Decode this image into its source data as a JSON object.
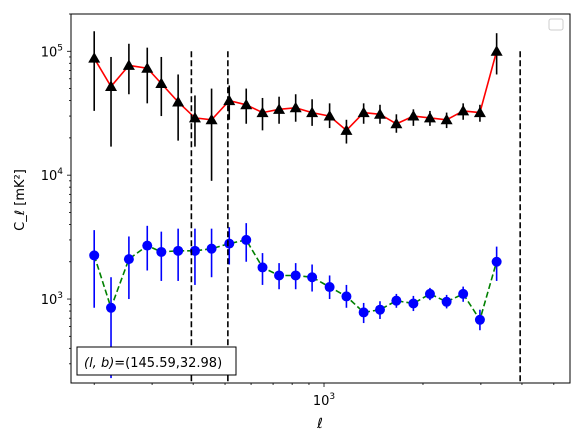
{
  "chart_data": {
    "type": "line",
    "title": "",
    "xlabel": "ℓ",
    "ylabel": "C_ℓ  [mK²]",
    "x_scale": "log",
    "y_scale": "log",
    "xlim": [
      170,
      5600
    ],
    "ylim": [
      210,
      200000
    ],
    "x_ticks": [
      {
        "value": 1000,
        "base": "10",
        "exp": "3"
      }
    ],
    "y_ticks": [
      {
        "value": 1000,
        "base": "10",
        "exp": "3"
      },
      {
        "value": 10000,
        "base": "10",
        "exp": "4"
      },
      {
        "value": 100000,
        "base": "10",
        "exp": "5"
      }
    ],
    "vlines": [
      395,
      510,
      3950
    ],
    "annotation": {
      "prefix": "(l, b)",
      "value": "=(145.59,32.98)"
    },
    "legend": {
      "placement": "top-right",
      "entries": []
    },
    "grid": false,
    "series": [
      {
        "color": "#ff0000",
        "linestyle": "solid",
        "marker": "triangle",
        "marker_color": "#000000",
        "errorbar_color": "#000000",
        "points": [
          {
            "x": 200,
            "y": 88000,
            "lo": 33000,
            "hi": 145000
          },
          {
            "x": 225,
            "y": 52000,
            "lo": 17000,
            "hi": 90000
          },
          {
            "x": 255,
            "y": 77000,
            "lo": 45000,
            "hi": 115000
          },
          {
            "x": 290,
            "y": 73000,
            "lo": 38000,
            "hi": 107000
          },
          {
            "x": 320,
            "y": 55000,
            "lo": 30000,
            "hi": 90000
          },
          {
            "x": 360,
            "y": 39000,
            "lo": 19000,
            "hi": 65000
          },
          {
            "x": 405,
            "y": 29000,
            "lo": 17000,
            "hi": 44000
          },
          {
            "x": 455,
            "y": 28000,
            "lo": 9000,
            "hi": 50000
          },
          {
            "x": 515,
            "y": 40000,
            "lo": 28000,
            "hi": 53000
          },
          {
            "x": 580,
            "y": 37000,
            "lo": 26000,
            "hi": 50000
          },
          {
            "x": 650,
            "y": 32000,
            "lo": 23000,
            "hi": 42000
          },
          {
            "x": 730,
            "y": 34000,
            "lo": 26000,
            "hi": 43000
          },
          {
            "x": 820,
            "y": 35000,
            "lo": 27000,
            "hi": 45000
          },
          {
            "x": 920,
            "y": 32000,
            "lo": 25000,
            "hi": 41000
          },
          {
            "x": 1040,
            "y": 30000,
            "lo": 24000,
            "hi": 38000
          },
          {
            "x": 1170,
            "y": 23000,
            "lo": 18000,
            "hi": 28000
          },
          {
            "x": 1320,
            "y": 32000,
            "lo": 26000,
            "hi": 38000
          },
          {
            "x": 1480,
            "y": 31000,
            "lo": 26000,
            "hi": 37000
          },
          {
            "x": 1660,
            "y": 26000,
            "lo": 22000,
            "hi": 31000
          },
          {
            "x": 1870,
            "y": 30000,
            "lo": 25000,
            "hi": 34000
          },
          {
            "x": 2100,
            "y": 29000,
            "lo": 25000,
            "hi": 33000
          },
          {
            "x": 2360,
            "y": 28000,
            "lo": 24000,
            "hi": 32000
          },
          {
            "x": 2650,
            "y": 33000,
            "lo": 28000,
            "hi": 38000
          },
          {
            "x": 2980,
            "y": 32000,
            "lo": 27000,
            "hi": 37000
          },
          {
            "x": 3350,
            "y": 100000,
            "lo": 65000,
            "hi": 140000
          }
        ]
      },
      {
        "color": "#008000",
        "linestyle": "dashed",
        "marker": "circle",
        "marker_color": "#0000ff",
        "errorbar_color": "#0000ff",
        "points": [
          {
            "x": 200,
            "y": 2250,
            "lo": 850,
            "hi": 3600
          },
          {
            "x": 225,
            "y": 850,
            "lo": 230,
            "hi": 1500
          },
          {
            "x": 255,
            "y": 2100,
            "lo": 1000,
            "hi": 3200
          },
          {
            "x": 290,
            "y": 2700,
            "lo": 1700,
            "hi": 3900
          },
          {
            "x": 320,
            "y": 2400,
            "lo": 1400,
            "hi": 3500
          },
          {
            "x": 360,
            "y": 2450,
            "lo": 1400,
            "hi": 3700
          },
          {
            "x": 405,
            "y": 2450,
            "lo": 1300,
            "hi": 3700
          },
          {
            "x": 455,
            "y": 2550,
            "lo": 1500,
            "hi": 3700
          },
          {
            "x": 515,
            "y": 2800,
            "lo": 1900,
            "hi": 3800
          },
          {
            "x": 580,
            "y": 3000,
            "lo": 2000,
            "hi": 4100
          },
          {
            "x": 650,
            "y": 1800,
            "lo": 1300,
            "hi": 2350
          },
          {
            "x": 730,
            "y": 1550,
            "lo": 1200,
            "hi": 1950
          },
          {
            "x": 820,
            "y": 1550,
            "lo": 1200,
            "hi": 1950
          },
          {
            "x": 920,
            "y": 1500,
            "lo": 1150,
            "hi": 1900
          },
          {
            "x": 1040,
            "y": 1250,
            "lo": 1000,
            "hi": 1550
          },
          {
            "x": 1170,
            "y": 1050,
            "lo": 850,
            "hi": 1300
          },
          {
            "x": 1320,
            "y": 780,
            "lo": 640,
            "hi": 930
          },
          {
            "x": 1480,
            "y": 820,
            "lo": 690,
            "hi": 960
          },
          {
            "x": 1660,
            "y": 970,
            "lo": 850,
            "hi": 1100
          },
          {
            "x": 1870,
            "y": 920,
            "lo": 800,
            "hi": 1060
          },
          {
            "x": 2100,
            "y": 1100,
            "lo": 980,
            "hi": 1230
          },
          {
            "x": 2360,
            "y": 950,
            "lo": 840,
            "hi": 1080
          },
          {
            "x": 2650,
            "y": 1100,
            "lo": 950,
            "hi": 1260
          },
          {
            "x": 2980,
            "y": 680,
            "lo": 560,
            "hi": 820
          },
          {
            "x": 3350,
            "y": 2000,
            "lo": 1400,
            "hi": 2650
          }
        ]
      }
    ]
  }
}
